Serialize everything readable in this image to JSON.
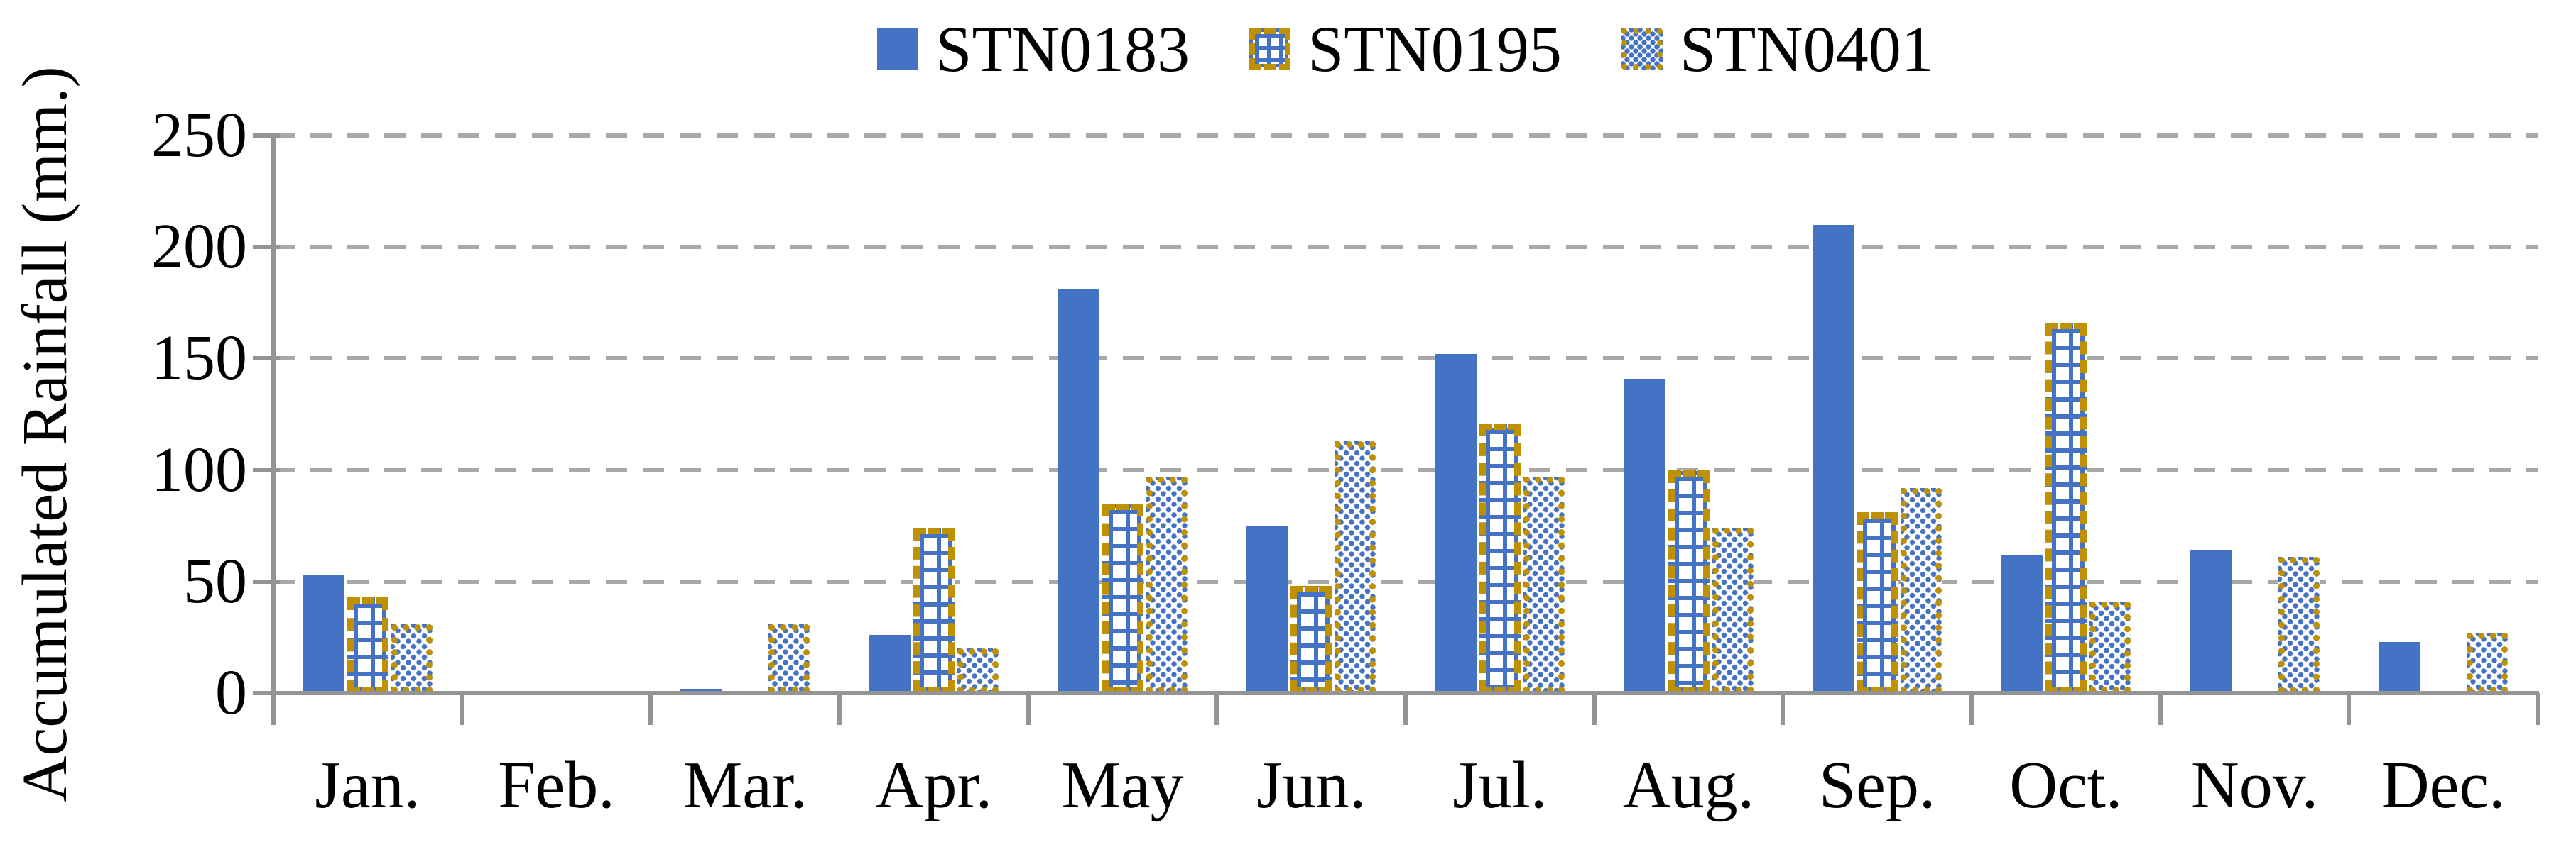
{
  "chart_data": {
    "type": "bar",
    "title": "",
    "ylabel": "Accumulated Rainfall (mm.)",
    "xlabel": "",
    "categories": [
      "Jan.",
      "Feb.",
      "Mar.",
      "Apr.",
      "May",
      "Jun.",
      "Jul.",
      "Aug.",
      "Sep.",
      "Oct.",
      "Nov.",
      "Dec."
    ],
    "y_ticks": [
      0,
      50,
      100,
      150,
      200,
      250
    ],
    "ylim": [
      0,
      250
    ],
    "grid": "horizontal-dashed",
    "legend_position": "top-center",
    "series": [
      {
        "name": "STN0183",
        "pattern": "solid-blue",
        "values": [
          53,
          0,
          2,
          26,
          181,
          75,
          152,
          141,
          210,
          62,
          64,
          23
        ]
      },
      {
        "name": "STN0195",
        "pattern": "blue-checker-gold-dashed-border",
        "values": [
          43,
          0,
          0,
          74,
          85,
          48,
          121,
          100,
          81,
          166,
          0,
          0
        ]
      },
      {
        "name": "STN0401",
        "pattern": "blue-dots-gold-dotted-border",
        "values": [
          31,
          0,
          31,
          20,
          97,
          113,
          97,
          74,
          92,
          41,
          61,
          27
        ]
      }
    ]
  },
  "colors": {
    "bar_blue": "#4472C4",
    "pattern_gold": "#BF9000",
    "gridline_gray": "#A8A8A8",
    "axis_gray": "#949494",
    "text": "#000000",
    "background": "#FFFFFF"
  }
}
